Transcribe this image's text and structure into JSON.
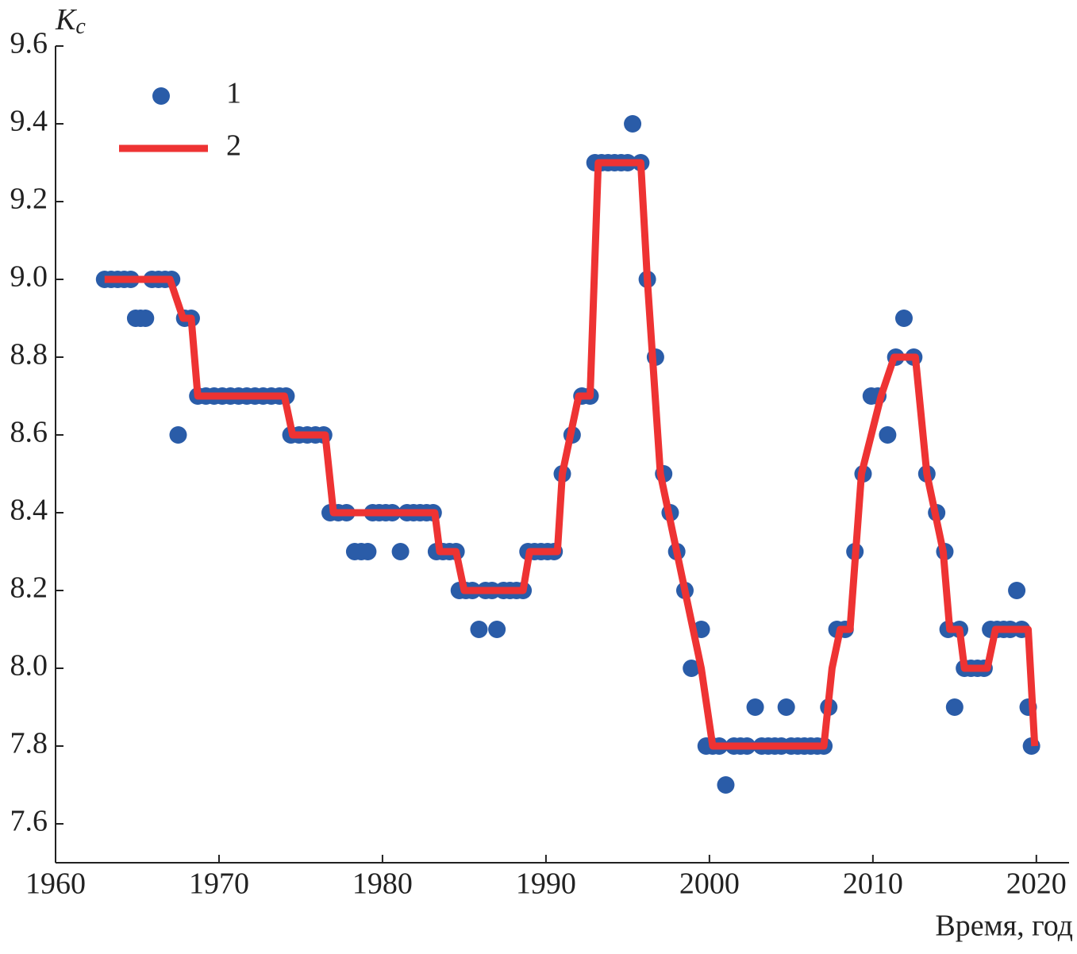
{
  "chart_data": {
    "type": "scatter",
    "ylabel": "K",
    "ylabel_subscript": "c",
    "xlabel": "Время, год",
    "xlim": [
      1960,
      2022
    ],
    "ylim": [
      7.5,
      9.6
    ],
    "xticks": [
      1960,
      1970,
      1980,
      1990,
      2000,
      2010,
      2020
    ],
    "yticks": [
      7.6,
      7.8,
      {
        "value": 8,
        "label": "8.0"
      },
      8.2,
      8.4,
      8.6,
      8.8,
      {
        "value": 9,
        "label": "9.0"
      },
      9.2,
      9.4,
      9.6
    ],
    "legend_position": "upper left",
    "series": [
      {
        "name": "1",
        "type": "scatter",
        "color": "#2a5ca8",
        "x": [
          1963.0,
          1963.4,
          1963.8,
          1964.2,
          1964.6,
          1964.9,
          1965.2,
          1965.5,
          1965.9,
          1966.3,
          1966.7,
          1967.1,
          1967.5,
          1967.9,
          1968.3,
          1968.7,
          1969.2,
          1969.7,
          1970.2,
          1970.7,
          1971.2,
          1971.7,
          1972.2,
          1972.7,
          1973.2,
          1973.7,
          1974.1,
          1974.4,
          1974.9,
          1975.4,
          1975.9,
          1976.4,
          1976.8,
          1977.3,
          1977.8,
          1978.3,
          1978.7,
          1979.1,
          1979.4,
          1979.8,
          1980.2,
          1980.6,
          1981.1,
          1981.5,
          1981.9,
          1982.3,
          1982.7,
          1983.1,
          1983.3,
          1983.7,
          1984.1,
          1984.5,
          1984.7,
          1985.1,
          1985.5,
          1985.9,
          1986.3,
          1986.7,
          1987.0,
          1987.4,
          1987.8,
          1988.2,
          1988.6,
          1988.9,
          1989.3,
          1989.7,
          1990.1,
          1990.5,
          1991.0,
          1991.6,
          1992.2,
          1992.7,
          1993.0,
          1993.4,
          1993.8,
          1994.2,
          1994.6,
          1995.0,
          1995.3,
          1995.8,
          1996.2,
          1996.7,
          1997.2,
          1997.6,
          1998.0,
          1998.5,
          1998.9,
          1999.5,
          1999.8,
          2000.2,
          2000.6,
          2001.0,
          2001.5,
          2001.9,
          2002.3,
          2002.8,
          2003.2,
          2003.6,
          2004.0,
          2004.4,
          2004.7,
          2005.0,
          2005.4,
          2005.8,
          2006.2,
          2006.6,
          2007.0,
          2007.3,
          2007.8,
          2008.3,
          2008.9,
          2009.4,
          2009.9,
          2010.3,
          2010.9,
          2011.4,
          2011.9,
          2012.5,
          2013.3,
          2013.9,
          2014.4,
          2014.6,
          2015.0,
          2015.3,
          2015.6,
          2016.0,
          2016.4,
          2016.8,
          2017.2,
          2017.6,
          2018.0,
          2018.4,
          2018.8,
          2019.1,
          2019.5,
          2019.7
        ],
        "values": [
          9.0,
          9.0,
          9.0,
          9.0,
          9.0,
          8.9,
          8.9,
          8.9,
          9.0,
          9.0,
          9.0,
          9.0,
          8.6,
          8.9,
          8.9,
          8.7,
          8.7,
          8.7,
          8.7,
          8.7,
          8.7,
          8.7,
          8.7,
          8.7,
          8.7,
          8.7,
          8.7,
          8.6,
          8.6,
          8.6,
          8.6,
          8.6,
          8.4,
          8.4,
          8.4,
          8.3,
          8.3,
          8.3,
          8.4,
          8.4,
          8.4,
          8.4,
          8.3,
          8.4,
          8.4,
          8.4,
          8.4,
          8.4,
          8.3,
          8.3,
          8.3,
          8.3,
          8.2,
          8.2,
          8.2,
          8.1,
          8.2,
          8.2,
          8.1,
          8.2,
          8.2,
          8.2,
          8.2,
          8.3,
          8.3,
          8.3,
          8.3,
          8.3,
          8.5,
          8.6,
          8.7,
          8.7,
          9.3,
          9.3,
          9.3,
          9.3,
          9.3,
          9.3,
          9.4,
          9.3,
          9.0,
          8.8,
          8.5,
          8.4,
          8.3,
          8.2,
          8.0,
          8.1,
          7.8,
          7.8,
          7.8,
          7.7,
          7.8,
          7.8,
          7.8,
          7.9,
          7.8,
          7.8,
          7.8,
          7.8,
          7.9,
          7.8,
          7.8,
          7.8,
          7.8,
          7.8,
          7.8,
          7.9,
          8.1,
          8.1,
          8.3,
          8.5,
          8.7,
          8.7,
          8.6,
          8.8,
          8.9,
          8.8,
          8.5,
          8.4,
          8.3,
          8.1,
          7.9,
          8.1,
          8.0,
          8.0,
          8.0,
          8.0,
          8.1,
          8.1,
          8.1,
          8.1,
          8.2,
          8.1,
          7.9,
          7.8
        ]
      },
      {
        "name": "2",
        "type": "line",
        "color": "#ee3333",
        "x": [
          1963,
          1967,
          1967.8,
          1968.3,
          1968.7,
          1974,
          1974.5,
          1976.5,
          1977,
          1983.2,
          1983.5,
          1984.5,
          1985,
          1988.6,
          1989,
          1990.7,
          1991,
          1992,
          1992.7,
          1993.2,
          1995.8,
          1996.2,
          1997,
          1999.5,
          2000.2,
          2007,
          2007.5,
          2008,
          2008.6,
          2009.3,
          2010.5,
          2011.3,
          2012.6,
          2013.3,
          2014.3,
          2014.7,
          2015.3,
          2015.6,
          2017,
          2017.5,
          2019.5,
          2019.9
        ],
        "values": [
          9.0,
          9.0,
          8.9,
          8.9,
          8.7,
          8.7,
          8.6,
          8.6,
          8.4,
          8.4,
          8.3,
          8.3,
          8.2,
          8.2,
          8.3,
          8.3,
          8.5,
          8.7,
          8.7,
          9.3,
          9.3,
          9.0,
          8.5,
          8.0,
          7.8,
          7.8,
          8.0,
          8.1,
          8.1,
          8.5,
          8.7,
          8.8,
          8.8,
          8.5,
          8.3,
          8.1,
          8.1,
          8.0,
          8.0,
          8.1,
          8.1,
          7.8
        ]
      }
    ]
  }
}
